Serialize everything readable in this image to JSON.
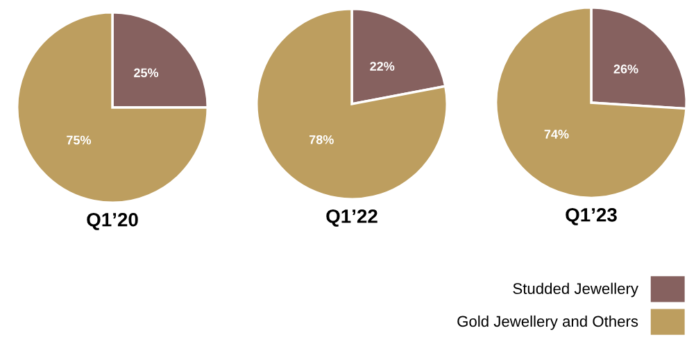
{
  "chart_data": [
    {
      "type": "pie",
      "title": "Q1’20",
      "categories": [
        "Studded Jewellery",
        "Gold Jewellery and Others"
      ],
      "values": [
        25,
        75
      ],
      "colors": [
        "#86615f",
        "#bd9e5f"
      ],
      "value_labels": [
        "25%",
        "75%"
      ],
      "legend": "bottom right"
    },
    {
      "type": "pie",
      "title": "Q1’22",
      "categories": [
        null,
        null
      ],
      "values": [
        22,
        78
      ],
      "colors": [
        "#86615f",
        "#bd9e5f"
      ],
      "value_labels": [
        "22%",
        "78%"
      ]
    },
    {
      "type": "pie",
      "title": "Q1’23",
      "categories": [
        null,
        null
      ],
      "values": [
        26,
        74
      ],
      "colors": [
        "#86615f",
        "#bd9e5f"
      ],
      "value_labels": [
        "26%",
        "74%"
      ]
    }
  ]
}
